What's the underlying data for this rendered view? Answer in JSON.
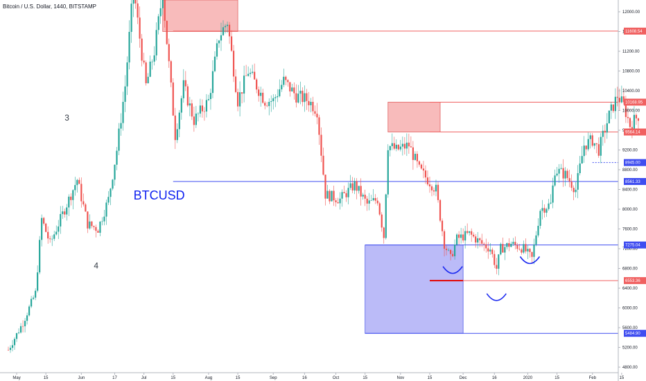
{
  "chart_data": {
    "type": "candlestick",
    "title": "Bitcoin / U.S. Dollar, 1440, BITSTAMP",
    "xlabel": "",
    "ylabel": "",
    "x_range": [
      "2019-05-01",
      "2020-02-28"
    ],
    "ylim": [
      4800,
      12300
    ],
    "grid": false,
    "colors": {
      "up": "#26a69a",
      "down": "#ef5350",
      "red_line": "#f06060",
      "blue_line": "#3f4df0",
      "red_zone": "#f8b8b8",
      "blue_zone": "#b8b8f8"
    },
    "y_ticks": [
      4800,
      5200,
      5600,
      6000,
      6400,
      6800,
      7200,
      7600,
      8000,
      8400,
      8800,
      9200,
      9600,
      10000,
      10400,
      10800,
      11200,
      11600,
      12000
    ],
    "x_ticks": [
      {
        "date": "2019-05-01",
        "label": "May"
      },
      {
        "date": "2019-05-15",
        "label": "15"
      },
      {
        "date": "2019-06-01",
        "label": "Jun"
      },
      {
        "date": "2019-06-17",
        "label": "17"
      },
      {
        "date": "2019-07-01",
        "label": "Jul"
      },
      {
        "date": "2019-07-15",
        "label": "15"
      },
      {
        "date": "2019-08-01",
        "label": "Aug"
      },
      {
        "date": "2019-08-15",
        "label": "15"
      },
      {
        "date": "2019-09-01",
        "label": "Sep"
      },
      {
        "date": "2019-09-16",
        "label": "16"
      },
      {
        "date": "2019-10-01",
        "label": "Oct"
      },
      {
        "date": "2019-10-15",
        "label": "15"
      },
      {
        "date": "2019-11-01",
        "label": "Nov"
      },
      {
        "date": "2019-11-15",
        "label": "15"
      },
      {
        "date": "2019-12-01",
        "label": "Dec"
      },
      {
        "date": "2019-12-16",
        "label": "16"
      },
      {
        "date": "2020-01-01",
        "label": "2020"
      },
      {
        "date": "2020-01-15",
        "label": "15"
      },
      {
        "date": "2020-02-01",
        "label": "Feb"
      },
      {
        "date": "2020-02-15",
        "label": "15"
      }
    ],
    "price_path": [
      [
        "2019-04-27",
        5150
      ],
      [
        "2019-05-04",
        5700
      ],
      [
        "2019-05-10",
        6300
      ],
      [
        "2019-05-13",
        7800
      ],
      [
        "2019-05-17",
        7300
      ],
      [
        "2019-05-24",
        8000
      ],
      [
        "2019-05-30",
        8600
      ],
      [
        "2019-06-04",
        7700
      ],
      [
        "2019-06-09",
        7600
      ],
      [
        "2019-06-14",
        8200
      ],
      [
        "2019-06-18",
        9200
      ],
      [
        "2019-06-22",
        10500
      ],
      [
        "2019-06-26",
        12500
      ],
      [
        "2019-06-28",
        11800
      ],
      [
        "2019-07-02",
        10500
      ],
      [
        "2019-07-06",
        11200
      ],
      [
        "2019-07-10",
        12400
      ],
      [
        "2019-07-12",
        11400
      ],
      [
        "2019-07-16",
        9500
      ],
      [
        "2019-07-20",
        10500
      ],
      [
        "2019-07-25",
        9800
      ],
      [
        "2019-08-01",
        10200
      ],
      [
        "2019-08-06",
        11500
      ],
      [
        "2019-08-10",
        11800
      ],
      [
        "2019-08-15",
        10200
      ],
      [
        "2019-08-20",
        10800
      ],
      [
        "2019-08-28",
        10200
      ],
      [
        "2019-09-01",
        10200
      ],
      [
        "2019-09-06",
        10600
      ],
      [
        "2019-09-12",
        10300
      ],
      [
        "2019-09-18",
        10200
      ],
      [
        "2019-09-22",
        10000
      ],
      [
        "2019-09-26",
        8300
      ],
      [
        "2019-10-03",
        8200
      ],
      [
        "2019-10-10",
        8500
      ],
      [
        "2019-10-16",
        8100
      ],
      [
        "2019-10-21",
        8200
      ],
      [
        "2019-10-24",
        7450
      ],
      [
        "2019-10-26",
        9300
      ],
      [
        "2019-10-30",
        9200
      ],
      [
        "2019-11-05",
        9300
      ],
      [
        "2019-11-10",
        8800
      ],
      [
        "2019-11-14",
        8600
      ],
      [
        "2019-11-18",
        8400
      ],
      [
        "2019-11-22",
        7300
      ],
      [
        "2019-11-25",
        7000
      ],
      [
        "2019-11-28",
        7400
      ],
      [
        "2019-12-04",
        7500
      ],
      [
        "2019-12-10",
        7300
      ],
      [
        "2019-12-14",
        7200
      ],
      [
        "2019-12-17",
        6800
      ],
      [
        "2019-12-19",
        7200
      ],
      [
        "2019-12-24",
        7300
      ],
      [
        "2019-12-30",
        7200
      ],
      [
        "2020-01-03",
        7000
      ],
      [
        "2020-01-07",
        8000
      ],
      [
        "2020-01-12",
        8100
      ],
      [
        "2020-01-14",
        8800
      ],
      [
        "2020-01-19",
        8700
      ],
      [
        "2020-01-24",
        8400
      ],
      [
        "2020-01-28",
        9300
      ],
      [
        "2020-02-01",
        9400
      ],
      [
        "2020-02-04",
        9200
      ],
      [
        "2020-02-09",
        9900
      ],
      [
        "2020-02-13",
        10300
      ],
      [
        "2020-02-16",
        10100
      ],
      [
        "2020-02-19",
        9700
      ],
      [
        "2020-02-23",
        9900
      ]
    ],
    "horizontal_levels": [
      {
        "price": 11608.54,
        "label": "11608.54",
        "color": "red",
        "from": "2019-07-15"
      },
      {
        "price": 10168.95,
        "label": "10168.95",
        "color": "red",
        "from": "2019-11-15"
      },
      {
        "price": 9564.14,
        "label": "9564.14",
        "color": "red",
        "from": "2019-11-15"
      },
      {
        "price": 8945.0,
        "label": "8945.00",
        "color": "blue",
        "from": "2020-02-01",
        "dashed": true
      },
      {
        "price": 8561.33,
        "label": "8561.33",
        "color": "blue",
        "from": "2019-07-15"
      },
      {
        "price": 7275.04,
        "label": "7275.04",
        "color": "blue",
        "from": "2019-10-15"
      },
      {
        "price": 6553.36,
        "label": "6553.36",
        "color": "red",
        "from": "2019-12-01"
      },
      {
        "price": 5484.9,
        "label": "5484.90",
        "color": "blue",
        "from": "2019-10-15"
      }
    ],
    "zones": [
      {
        "from": "2019-07-10",
        "to": "2019-08-15",
        "low": 11600,
        "high": 12450,
        "color": "red"
      },
      {
        "from": "2019-10-26",
        "to": "2019-11-20",
        "low": 9564,
        "high": 10169,
        "color": "red"
      },
      {
        "from": "2019-10-15",
        "to": "2019-12-01",
        "low": 5485,
        "high": 7275,
        "color": "blue"
      }
    ],
    "annotations": [
      {
        "text": "3",
        "date": "2019-05-24",
        "price": 9800
      },
      {
        "text": "4",
        "date": "2019-06-07",
        "price": 6800
      },
      {
        "text": "BTCUSD",
        "date": "2019-06-26",
        "price": 8200
      }
    ],
    "support_arcs": [
      {
        "date": "2019-11-26",
        "price": 6700
      },
      {
        "date": "2019-12-17",
        "price": 6150
      },
      {
        "date": "2020-01-02",
        "price": 6900
      }
    ],
    "highlight_segment": {
      "from": "2019-11-15",
      "to": "2019-12-01",
      "price": 6553.36
    }
  }
}
